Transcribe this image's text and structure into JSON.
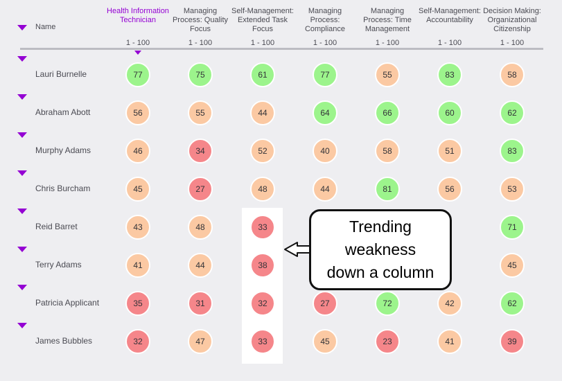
{
  "header": {
    "name_label": "Name",
    "columns": [
      {
        "label": "Health Information Technician",
        "range": "1 - 100",
        "active": true
      },
      {
        "label": "Managing Process: Quality Focus",
        "range": "1 - 100",
        "active": false
      },
      {
        "label": "Self-Management: Extended Task Focus",
        "range": "1 - 100",
        "active": false
      },
      {
        "label": "Managing Process: Compliance",
        "range": "1 - 100",
        "active": false
      },
      {
        "label": "Managing Process: Time Management",
        "range": "1 - 100",
        "active": false
      },
      {
        "label": "Self-Management: Accountability",
        "range": "1 - 100",
        "active": false
      },
      {
        "label": "Decision Making: Organizational Citizenship",
        "range": "1 - 100",
        "active": false
      }
    ]
  },
  "rows": [
    {
      "name": "Lauri Burnelle",
      "scores": [
        77,
        75,
        61,
        77,
        55,
        83,
        58
      ]
    },
    {
      "name": "Abraham Abott",
      "scores": [
        56,
        55,
        44,
        64,
        66,
        60,
        62
      ]
    },
    {
      "name": "Murphy Adams",
      "scores": [
        46,
        34,
        52,
        40,
        58,
        51,
        83
      ]
    },
    {
      "name": "Chris Burcham",
      "scores": [
        45,
        27,
        48,
        44,
        81,
        56,
        53
      ]
    },
    {
      "name": "Reid Barret",
      "scores": [
        43,
        48,
        33,
        null,
        null,
        null,
        71
      ]
    },
    {
      "name": "Terry Adams",
      "scores": [
        41,
        44,
        38,
        null,
        null,
        null,
        45
      ]
    },
    {
      "name": "Patricia Applicant",
      "scores": [
        35,
        31,
        32,
        27,
        72,
        42,
        62
      ]
    },
    {
      "name": "James Bubbles",
      "scores": [
        32,
        47,
        33,
        45,
        23,
        41,
        39
      ]
    }
  ],
  "colors": {
    "high": "#9cf48c",
    "mid": "#fbc9a3",
    "low": "#f5868a",
    "accent": "#9400d3"
  },
  "callout": {
    "lines": [
      "Trending",
      "weakness",
      "down a column"
    ]
  }
}
